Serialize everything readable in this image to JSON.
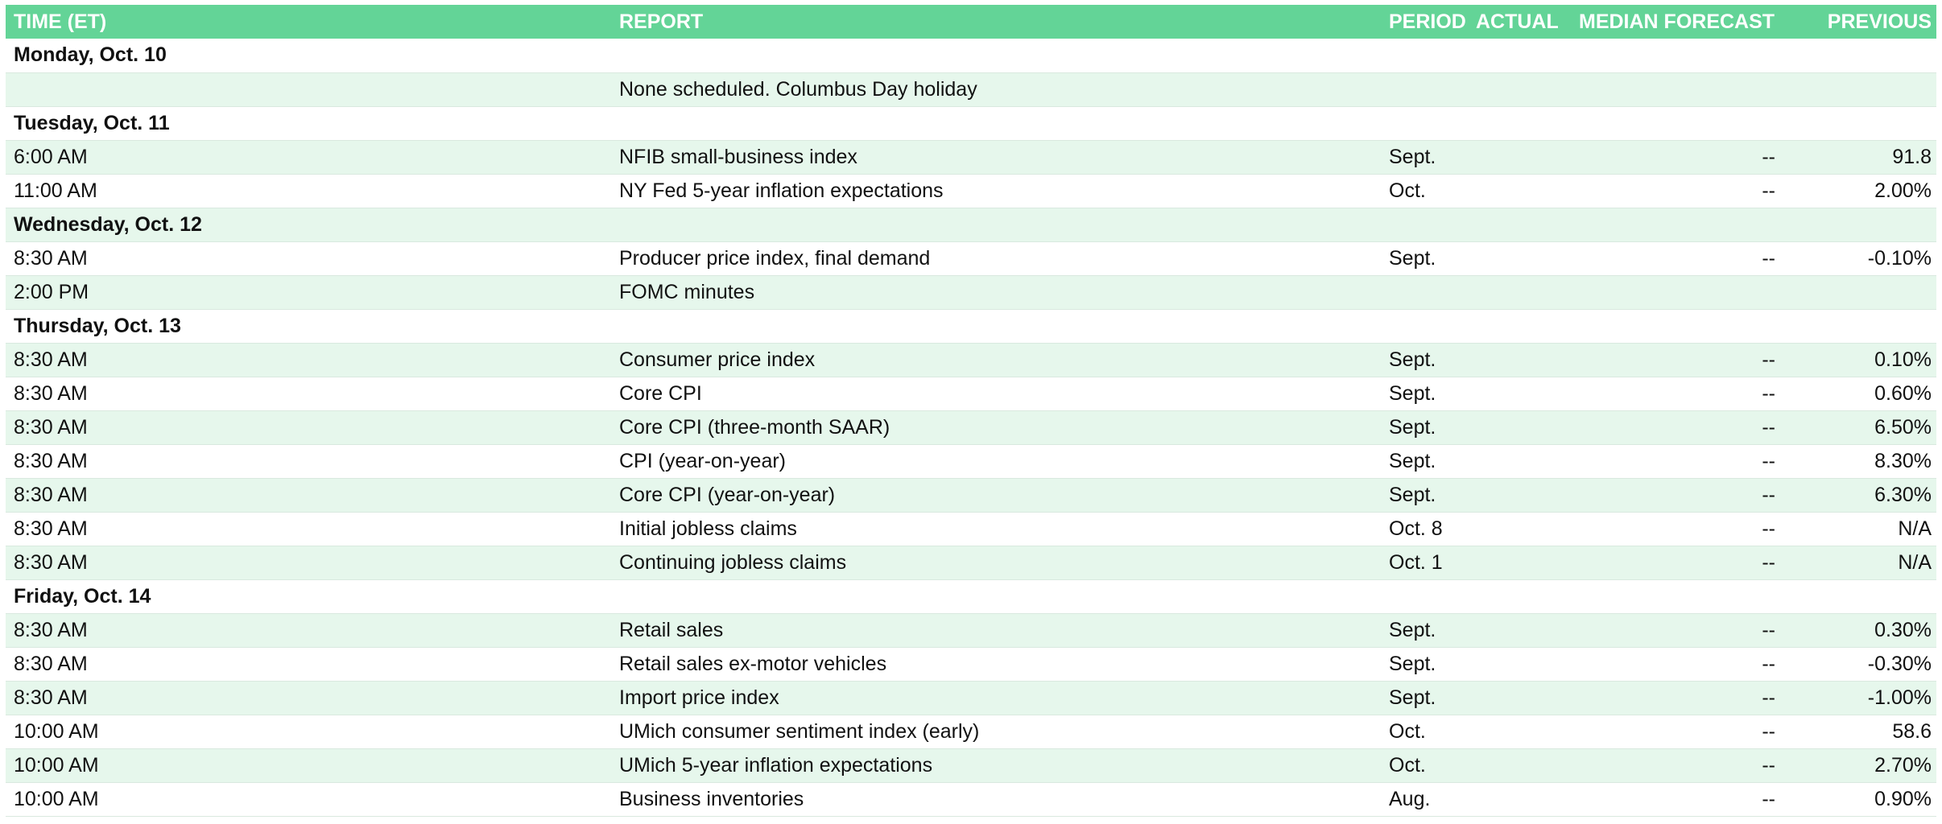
{
  "table": {
    "headers": {
      "time": "TIME (ET)",
      "report": "REPORT",
      "period": "PERIOD",
      "actual": "ACTUAL",
      "forecast": "MEDIAN FORECAST",
      "previous": "PREVIOUS"
    },
    "days": [
      {
        "label": "Monday, Oct. 10",
        "rows": [
          {
            "time": "",
            "report": "None scheduled. Columbus Day holiday",
            "period": "",
            "actual": "",
            "forecast": "",
            "previous": ""
          }
        ]
      },
      {
        "label": "Tuesday, Oct. 11",
        "rows": [
          {
            "time": "6:00 AM",
            "report": "NFIB small-business index",
            "period": "Sept.",
            "actual": "",
            "forecast": "--",
            "previous": "91.8"
          },
          {
            "time": "11:00 AM",
            "report": "NY Fed 5-year inflation expectations",
            "period": "Oct.",
            "actual": "",
            "forecast": "--",
            "previous": "2.00%"
          }
        ]
      },
      {
        "label": "Wednesday, Oct. 12",
        "rows": [
          {
            "time": "8:30 AM",
            "report": "Producer price index, final demand",
            "period": "Sept.",
            "actual": "",
            "forecast": "--",
            "previous": "-0.10%"
          },
          {
            "time": "2:00 PM",
            "report": "FOMC minutes",
            "period": "",
            "actual": "",
            "forecast": "",
            "previous": ""
          }
        ]
      },
      {
        "label": "Thursday, Oct. 13",
        "rows": [
          {
            "time": "8:30 AM",
            "report": "Consumer price index",
            "period": "Sept.",
            "actual": "",
            "forecast": "--",
            "previous": "0.10%"
          },
          {
            "time": "8:30 AM",
            "report": "Core CPI",
            "period": "Sept.",
            "actual": "",
            "forecast": "--",
            "previous": "0.60%"
          },
          {
            "time": "8:30 AM",
            "report": "Core CPI (three-month SAAR)",
            "period": "Sept.",
            "actual": "",
            "forecast": "--",
            "previous": "6.50%"
          },
          {
            "time": "8:30 AM",
            "report": "CPI (year-on-year)",
            "period": "Sept.",
            "actual": "",
            "forecast": "--",
            "previous": "8.30%"
          },
          {
            "time": "8:30 AM",
            "report": "Core CPI (year-on-year)",
            "period": "Sept.",
            "actual": "",
            "forecast": "--",
            "previous": "6.30%"
          },
          {
            "time": "8:30 AM",
            "report": "Initial jobless claims",
            "period": "Oct. 8",
            "actual": "",
            "forecast": "--",
            "previous": "N/A"
          },
          {
            "time": "8:30 AM",
            "report": "Continuing jobless claims",
            "period": "Oct. 1",
            "actual": "",
            "forecast": "--",
            "previous": "N/A"
          }
        ]
      },
      {
        "label": "Friday, Oct. 14",
        "rows": [
          {
            "time": "8:30 AM",
            "report": "Retail sales",
            "period": "Sept.",
            "actual": "",
            "forecast": "--",
            "previous": "0.30%"
          },
          {
            "time": "8:30 AM",
            "report": "Retail sales ex-motor vehicles",
            "period": "Sept.",
            "actual": "",
            "forecast": "--",
            "previous": "-0.30%"
          },
          {
            "time": "8:30 AM",
            "report": "Import price index",
            "period": "Sept.",
            "actual": "",
            "forecast": "--",
            "previous": "-1.00%"
          },
          {
            "time": "10:00 AM",
            "report": "UMich consumer sentiment index (early)",
            "period": "Oct.",
            "actual": "",
            "forecast": "--",
            "previous": "58.6"
          },
          {
            "time": "10:00 AM",
            "report": "UMich 5-year inflation expectations",
            "period": "Oct.",
            "actual": "",
            "forecast": "--",
            "previous": "2.70%"
          },
          {
            "time": "10:00 AM",
            "report": "Business inventories",
            "period": "Aug.",
            "actual": "",
            "forecast": "--",
            "previous": "0.90%"
          }
        ]
      }
    ]
  },
  "colors": {
    "header_bg": "#63d497",
    "header_text": "#ffffff",
    "alt_row_bg": "#e6f7ec",
    "text": "#111111"
  }
}
